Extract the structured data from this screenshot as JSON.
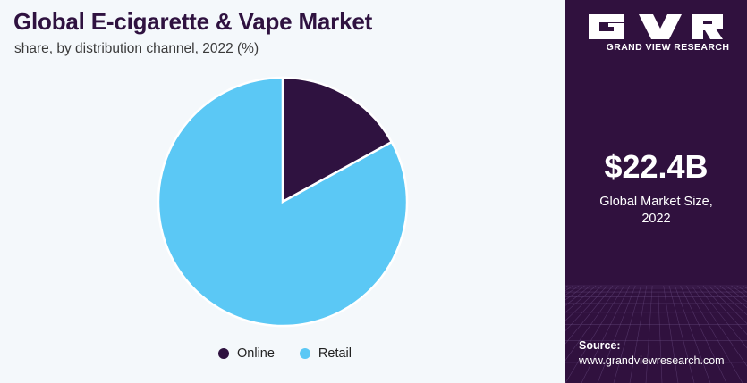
{
  "header": {
    "title": "Global E-cigarette & Vape Market",
    "subtitle": "share, by distribution channel, 2022 (%)"
  },
  "chart_data": {
    "type": "pie",
    "categories": [
      "Online",
      "Retail"
    ],
    "values": [
      17,
      83
    ],
    "colors": [
      "#2f1240",
      "#5bc8f5"
    ],
    "start_angle_deg": 0,
    "direction": "clockwise",
    "legend_position": "bottom"
  },
  "brand": {
    "name": "GRAND VIEW RESEARCH"
  },
  "stat": {
    "value": "$22.4B",
    "label_line1": "Global Market Size,",
    "label_line2": "2022"
  },
  "source": {
    "label": "Source:",
    "url": "www.grandviewresearch.com"
  },
  "colors": {
    "panel": "#30113e",
    "background": "#f4f8fb"
  }
}
